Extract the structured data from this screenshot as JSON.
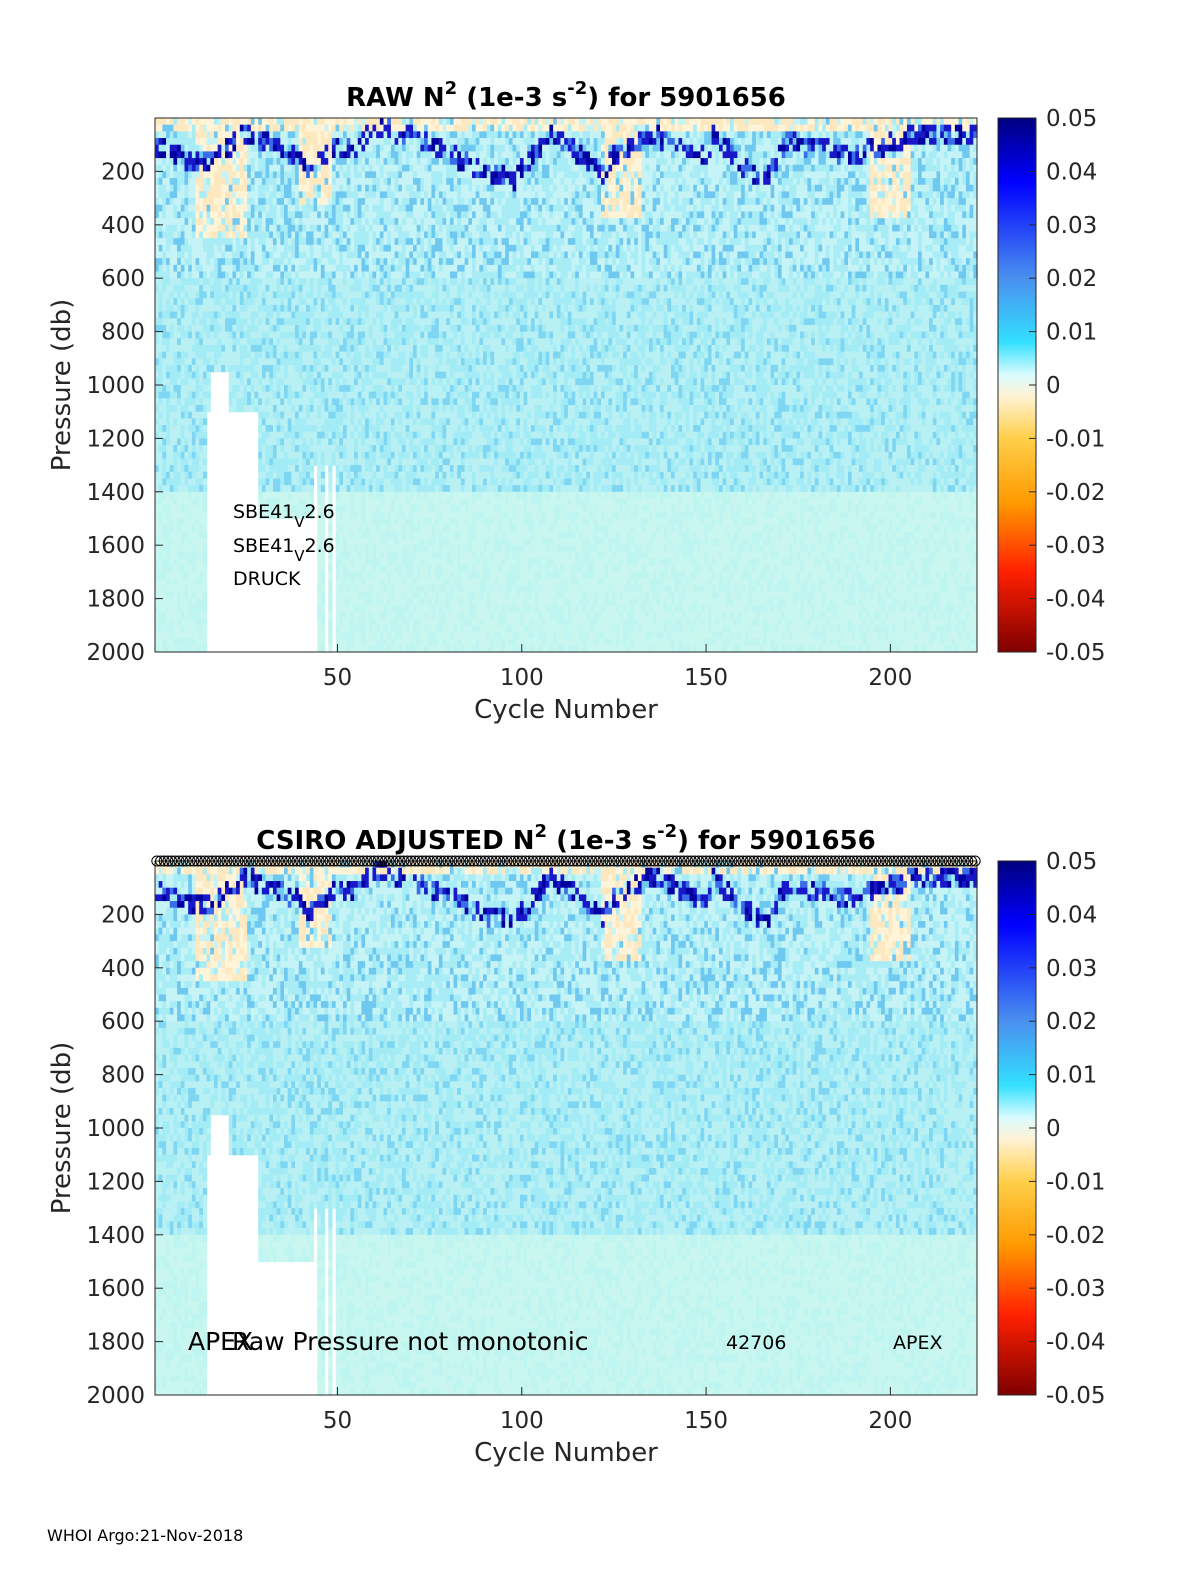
{
  "chart_data": [
    {
      "type": "heatmap",
      "title_parts": {
        "pre": "RAW N",
        "sup1": "2",
        "mid": " (1e-3 s",
        "sup2": "-2",
        "post": ") for 5901656"
      },
      "xlabel": "Cycle Number",
      "ylabel": "Pressure (db)",
      "xlim": [
        1,
        223
      ],
      "ylim": [
        2000,
        0
      ],
      "y_reversed": true,
      "xticks": [
        50,
        100,
        150,
        200
      ],
      "yticks": [
        200,
        400,
        600,
        800,
        1000,
        1200,
        1400,
        1600,
        1800,
        2000
      ],
      "colorbar": {
        "min": -0.05,
        "max": 0.05,
        "ticks": [
          "0.05",
          "0.04",
          "0.03",
          "0.02",
          "0.01",
          "0",
          "-0.01",
          "-0.02",
          "-0.03",
          "-0.04",
          "-0.05"
        ],
        "colormap": "jet-with-neutral-center"
      },
      "field_description": "N^2 mostly 0.005-0.012 below 400 db; strong positive (0.03-0.05) band near 50-250 db thermocline; slightly negative/near-zero mixed layer patches; missing data near cycles 15-45 below 1000 db",
      "annotations": [
        {
          "base": "SBE41",
          "sub": "V",
          "rest": "2.6"
        },
        {
          "base": "SBE41",
          "sub": "V",
          "rest": "2.6"
        },
        {
          "base": "DRUCK",
          "sub": "",
          "rest": ""
        }
      ]
    },
    {
      "type": "heatmap",
      "title_parts": {
        "pre": "CSIRO  ADJUSTED N",
        "sup1": "2",
        "mid": " (1e-3 s",
        "sup2": "-2",
        "post": ") for 5901656"
      },
      "xlabel": "Cycle Number",
      "ylabel": "Pressure (db)",
      "xlim": [
        1,
        223
      ],
      "ylim": [
        2000,
        0
      ],
      "y_reversed": true,
      "xticks": [
        50,
        100,
        150,
        200
      ],
      "yticks": [
        200,
        400,
        600,
        800,
        1000,
        1200,
        1400,
        1600,
        1800,
        2000
      ],
      "colorbar": {
        "min": -0.05,
        "max": 0.05,
        "ticks": [
          "0.05",
          "0.04",
          "0.03",
          "0.02",
          "0.01",
          "0",
          "-0.01",
          "-0.02",
          "-0.03",
          "-0.04",
          "-0.05"
        ],
        "colormap": "jet-with-neutral-center"
      },
      "qc_markers": "open circles along top edge for every cycle",
      "annotations": [
        {
          "text": "APEX"
        },
        {
          "text": "Raw Pressure not monotonic"
        },
        {
          "text": "42706"
        },
        {
          "text": "APEX"
        }
      ]
    }
  ],
  "footer": "WHOI Argo:21-Nov-2018"
}
